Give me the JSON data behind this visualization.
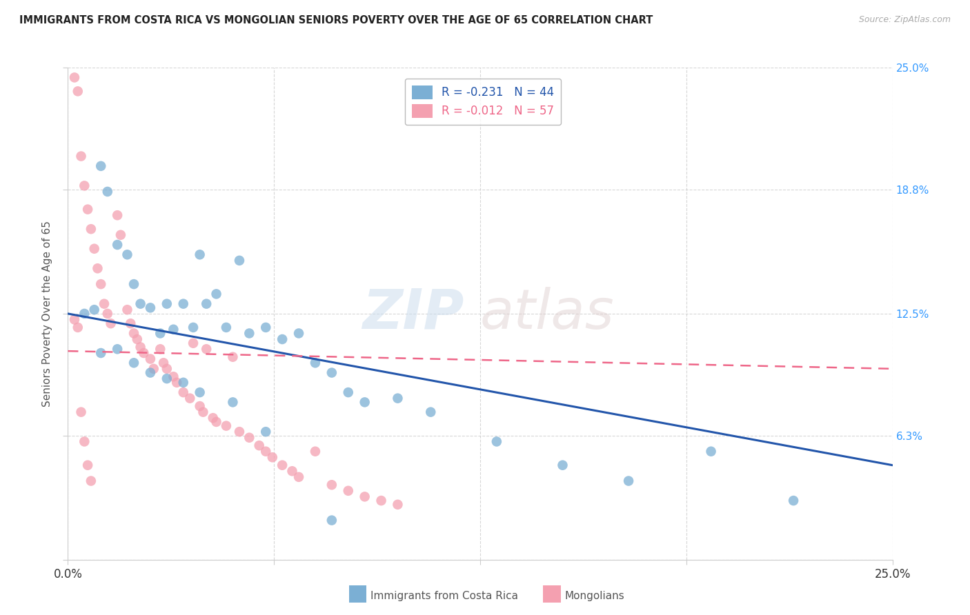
{
  "title": "IMMIGRANTS FROM COSTA RICA VS MONGOLIAN SENIORS POVERTY OVER THE AGE OF 65 CORRELATION CHART",
  "source": "Source: ZipAtlas.com",
  "ylabel": "Seniors Poverty Over the Age of 65",
  "xlim": [
    0.0,
    0.25
  ],
  "ylim": [
    0.0,
    0.25
  ],
  "blue_color": "#7BAFD4",
  "pink_color": "#F4A0B0",
  "trendline_blue": "#2255AA",
  "trendline_pink": "#EE6688",
  "watermark_zip": "ZIP",
  "watermark_atlas": "atlas",
  "legend_blue_r": "-0.231",
  "legend_blue_n": "44",
  "legend_pink_r": "-0.012",
  "legend_pink_n": "57",
  "blue_points_x": [
    0.005,
    0.008,
    0.01,
    0.012,
    0.015,
    0.018,
    0.02,
    0.022,
    0.025,
    0.028,
    0.03,
    0.032,
    0.035,
    0.038,
    0.04,
    0.042,
    0.045,
    0.048,
    0.052,
    0.055,
    0.06,
    0.065,
    0.07,
    0.075,
    0.08,
    0.085,
    0.09,
    0.1,
    0.11,
    0.13,
    0.15,
    0.17,
    0.195,
    0.22,
    0.01,
    0.015,
    0.02,
    0.025,
    0.03,
    0.035,
    0.04,
    0.05,
    0.06,
    0.08
  ],
  "blue_points_y": [
    0.125,
    0.127,
    0.2,
    0.187,
    0.16,
    0.155,
    0.14,
    0.13,
    0.128,
    0.115,
    0.13,
    0.117,
    0.13,
    0.118,
    0.155,
    0.13,
    0.135,
    0.118,
    0.152,
    0.115,
    0.118,
    0.112,
    0.115,
    0.1,
    0.095,
    0.085,
    0.08,
    0.082,
    0.075,
    0.06,
    0.048,
    0.04,
    0.055,
    0.03,
    0.105,
    0.107,
    0.1,
    0.095,
    0.092,
    0.09,
    0.085,
    0.08,
    0.065,
    0.02
  ],
  "pink_points_x": [
    0.002,
    0.003,
    0.004,
    0.005,
    0.006,
    0.007,
    0.008,
    0.009,
    0.01,
    0.011,
    0.012,
    0.013,
    0.015,
    0.016,
    0.018,
    0.019,
    0.02,
    0.021,
    0.022,
    0.023,
    0.025,
    0.026,
    0.028,
    0.029,
    0.03,
    0.032,
    0.033,
    0.035,
    0.037,
    0.038,
    0.04,
    0.041,
    0.042,
    0.044,
    0.045,
    0.048,
    0.05,
    0.052,
    0.055,
    0.058,
    0.06,
    0.062,
    0.065,
    0.068,
    0.07,
    0.075,
    0.08,
    0.085,
    0.09,
    0.095,
    0.1,
    0.002,
    0.003,
    0.004,
    0.005,
    0.006,
    0.007
  ],
  "pink_points_y": [
    0.245,
    0.238,
    0.205,
    0.19,
    0.178,
    0.168,
    0.158,
    0.148,
    0.14,
    0.13,
    0.125,
    0.12,
    0.175,
    0.165,
    0.127,
    0.12,
    0.115,
    0.112,
    0.108,
    0.105,
    0.102,
    0.097,
    0.107,
    0.1,
    0.097,
    0.093,
    0.09,
    0.085,
    0.082,
    0.11,
    0.078,
    0.075,
    0.107,
    0.072,
    0.07,
    0.068,
    0.103,
    0.065,
    0.062,
    0.058,
    0.055,
    0.052,
    0.048,
    0.045,
    0.042,
    0.055,
    0.038,
    0.035,
    0.032,
    0.03,
    0.028,
    0.122,
    0.118,
    0.075,
    0.06,
    0.048,
    0.04
  ],
  "blue_trend_x": [
    0.0,
    0.25
  ],
  "blue_trend_y": [
    0.125,
    0.048
  ],
  "pink_trend_x": [
    0.0,
    0.25
  ],
  "pink_trend_y": [
    0.106,
    0.097
  ],
  "grid_color": "#CCCCCC",
  "background_color": "#FFFFFF",
  "x_tick_positions": [
    0.0,
    0.0625,
    0.125,
    0.1875,
    0.25
  ],
  "y_tick_positions": [
    0.0,
    0.063,
    0.125,
    0.188,
    0.25
  ]
}
